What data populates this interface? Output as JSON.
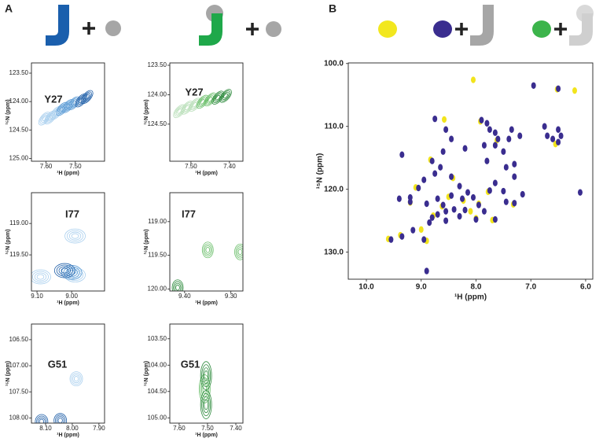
{
  "panel_labels": [
    "A",
    "B"
  ],
  "chart_data": [
    {
      "type": "contour",
      "annotation": "Y27",
      "xlabel": "¹H (ppm)",
      "ylabel": "¹⁵N (ppm)",
      "xlim": [
        7.65,
        7.4
      ],
      "ylim": [
        125.05,
        123.32
      ],
      "xticks": [
        {
          "value": 7.6,
          "label": "7.60"
        },
        {
          "value": 7.5,
          "label": "7.50"
        }
      ],
      "yticks": [
        {
          "value": 123.5,
          "label": "123.50"
        },
        {
          "value": 124,
          "label": "124.00"
        },
        {
          "value": 124.5,
          "label": "124.50"
        },
        {
          "value": 125,
          "label": "125.00"
        }
      ],
      "series": [
        {
          "color": "#a9cfee",
          "x": [
            7.605,
            7.585,
            7.565
          ],
          "values": [
            124.3,
            124.28,
            124.2
          ]
        },
        {
          "color": "#5b9bd5",
          "x": [
            7.545,
            7.525,
            7.505
          ],
          "values": [
            124.13,
            124.08,
            124.03
          ]
        },
        {
          "color": "#1f5fa8",
          "x": [
            7.48,
            7.46
          ],
          "values": [
            123.98,
            123.92
          ]
        }
      ]
    },
    {
      "type": "contour",
      "annotation": "Y27",
      "xlabel": "¹H (ppm)",
      "ylabel": "¹⁵N (ppm)",
      "xlim": [
        7.555,
        7.365
      ],
      "ylim": [
        125.13,
        123.46
      ],
      "xticks": [
        {
          "value": 7.5,
          "label": "7.50"
        },
        {
          "value": 7.4,
          "label": "7.40"
        }
      ],
      "yticks": [
        {
          "value": 123.5,
          "label": "123.50"
        },
        {
          "value": 124,
          "label": "124.00"
        },
        {
          "value": 124.5,
          "label": "124.50"
        }
      ],
      "series": [
        {
          "color": "#b9dfb9",
          "x": [
            7.53,
            7.51,
            7.49
          ],
          "values": [
            124.28,
            124.22,
            124.17
          ]
        },
        {
          "color": "#6cbf6c",
          "x": [
            7.47,
            7.45
          ],
          "values": [
            124.12,
            124.08
          ]
        },
        {
          "color": "#2e8b3e",
          "x": [
            7.43,
            7.41
          ],
          "values": [
            124.05,
            124.02
          ]
        }
      ]
    },
    {
      "type": "contour",
      "annotation": "I77",
      "xlabel": "¹H (ppm)",
      "ylabel": "¹⁵N (ppm)",
      "xlim": [
        9.116,
        8.905
      ],
      "ylim": [
        120.075,
        118.51
      ],
      "xticks": [
        {
          "value": 9.1,
          "label": "9.10"
        },
        {
          "value": 9,
          "label": "9.00"
        }
      ],
      "yticks": [
        {
          "value": 119,
          "label": "119.00"
        },
        {
          "value": 119.5,
          "label": "119.50"
        }
      ],
      "series": [
        {
          "color": "#a9cfee",
          "x": [
            8.99,
            8.99,
            9.09
          ],
          "values": [
            119.2,
            119.82,
            119.85
          ]
        },
        {
          "color": "#5b9bd5",
          "x": [
            9.0
          ],
          "values": [
            119.78
          ]
        },
        {
          "color": "#1f5fa8",
          "x": [
            9.02
          ],
          "values": [
            119.75
          ]
        }
      ]
    },
    {
      "type": "contour",
      "annotation": "I77",
      "xlabel": "¹H (ppm)",
      "ylabel": "¹⁵N (ppm)",
      "xlim": [
        9.432,
        9.274
      ],
      "ylim": [
        120.03,
        118.57
      ],
      "xticks": [
        {
          "value": 9.4,
          "label": "9.40"
        },
        {
          "value": 9.3,
          "label": "9.30"
        }
      ],
      "yticks": [
        {
          "value": 119,
          "label": "119.00"
        },
        {
          "value": 119.5,
          "label": "119.50"
        },
        {
          "value": 120,
          "label": "120.00"
        }
      ],
      "series": [
        {
          "color": "#6cbf6c",
          "x": [
            9.35,
            9.28
          ],
          "values": [
            119.42,
            119.45
          ]
        },
        {
          "color": "#2e8b3e",
          "x": [
            9.415
          ],
          "values": [
            119.98
          ]
        }
      ]
    },
    {
      "type": "contour",
      "annotation": "G51",
      "xlabel": "¹H (ppm)",
      "ylabel": "¹⁵N (ppm)",
      "xlim": [
        8.153,
        7.879
      ],
      "ylim": [
        108.1,
        106.2
      ],
      "xticks": [
        {
          "value": 8.1,
          "label": "8.10"
        },
        {
          "value": 8,
          "label": "8.00"
        },
        {
          "value": 7.9,
          "label": "7.90"
        }
      ],
      "yticks": [
        {
          "value": 106.5,
          "label": "106.50"
        },
        {
          "value": 107,
          "label": "107.00"
        },
        {
          "value": 107.5,
          "label": "107.50"
        },
        {
          "value": 108,
          "label": "108.00"
        }
      ],
      "series": [
        {
          "color": "#a9cfee",
          "x": [
            7.985
          ],
          "values": [
            107.25
          ]
        },
        {
          "color": "#1f5fa8",
          "x": [
            8.045,
            8.115
          ],
          "values": [
            108.05,
            108.07
          ]
        }
      ]
    },
    {
      "type": "contour",
      "annotation": "G51",
      "xlabel": "¹H (ppm)",
      "ylabel": "¹⁵N (ppm)",
      "xlim": [
        7.633,
        7.375
      ],
      "ylim": [
        105.1,
        103.22
      ],
      "xticks": [
        {
          "value": 7.6,
          "label": "7.60"
        },
        {
          "value": 7.5,
          "label": "7.50"
        },
        {
          "value": 7.4,
          "label": "7.40"
        }
      ],
      "yticks": [
        {
          "value": 103.5,
          "label": "103.50"
        },
        {
          "value": 104,
          "label": "104.00"
        },
        {
          "value": 104.5,
          "label": "104.50"
        },
        {
          "value": 105,
          "label": "105.00"
        }
      ],
      "series": [
        {
          "color": "#6cbf6c",
          "x": [
            7.51
          ],
          "values": [
            104.45
          ]
        },
        {
          "color": "#2e8b3e",
          "x": [
            7.505,
            7.505
          ],
          "values": [
            104.2,
            104.75
          ]
        }
      ]
    },
    {
      "type": "scatter",
      "xlabel": "¹H (ppm)",
      "ylabel": "¹⁵N (ppm)",
      "xlim": [
        10.33,
        5.87
      ],
      "ylim": [
        134.3,
        99.9
      ],
      "xticks": [
        {
          "value": 10,
          "label": "10.0"
        },
        {
          "value": 9,
          "label": "9.0"
        },
        {
          "value": 8,
          "label": "8.0"
        },
        {
          "value": 7,
          "label": "7.0"
        },
        {
          "value": 6,
          "label": "6.0"
        }
      ],
      "yticks": [
        {
          "value": 100,
          "label": "100.0"
        },
        {
          "value": 110,
          "label": "110.0"
        },
        {
          "value": 120,
          "label": "120.0"
        },
        {
          "value": 130,
          "label": "130.0"
        }
      ],
      "series": [
        {
          "color": "#f2e41c",
          "x": [
            8.05,
            6.2,
            6.52,
            8.58,
            7.92,
            7.62,
            8.83,
            9.1,
            9.6,
            9.38,
            8.0,
            7.7,
            8.5,
            8.23,
            7.95,
            8.78,
            9.2,
            8.42,
            7.32,
            6.55,
            8.9,
            8.62,
            7.78,
            9.0,
            8.1
          ],
          "values": [
            102.6,
            104.3,
            104.1,
            108.9,
            109.2,
            112.2,
            115.3,
            119.7,
            127.9,
            127.3,
            124.6,
            124.9,
            121.2,
            121.8,
            122.3,
            124.2,
            122.1,
            118.2,
            122.4,
            112.8,
            128.2,
            122.7,
            120.4,
            126.4,
            123.5
          ]
        },
        {
          "color": "#3a2d8f",
          "x": [
            6.95,
            6.5,
            8.55,
            8.75,
            7.9,
            7.8,
            7.75,
            7.65,
            7.6,
            7.65,
            7.35,
            7.4,
            7.2,
            6.75,
            6.7,
            6.6,
            6.5,
            6.45,
            6.5,
            8.45,
            8.2,
            7.85,
            7.8,
            7.5,
            7.45,
            7.3,
            7.3,
            8.6,
            8.65,
            8.75,
            8.8,
            9.35,
            8.95,
            9.05,
            8.45,
            8.3,
            8.15,
            8.25,
            8.45,
            8.7,
            8.6,
            8.55,
            8.4,
            8.3,
            8.2,
            8.05,
            7.95,
            7.85,
            7.75,
            7.65,
            7.5,
            7.45,
            7.3,
            7.65,
            8.0,
            8.55,
            8.8,
            8.85,
            9.15,
            9.2,
            9.4,
            9.2,
            9.35,
            9.55,
            8.95,
            8.9,
            6.1,
            8.9,
            8.7,
            7.15
          ],
          "values": [
            103.5,
            104.0,
            110.5,
            108.8,
            109.0,
            109.5,
            110.5,
            111.0,
            112.0,
            113.0,
            110.5,
            112.0,
            111.5,
            110.0,
            111.5,
            112.0,
            110.5,
            111.5,
            112.5,
            112.0,
            113.5,
            113.0,
            115.5,
            114.0,
            116.5,
            116.0,
            118.0,
            114.0,
            116.5,
            117.5,
            115.5,
            114.5,
            118.5,
            119.8,
            118.0,
            119.5,
            120.5,
            121.5,
            121.0,
            121.5,
            122.5,
            123.5,
            123.2,
            124.3,
            123.3,
            121.3,
            122.5,
            123.5,
            120.2,
            119.0,
            120.3,
            122.0,
            122.2,
            124.8,
            124.8,
            125.0,
            124.5,
            125.3,
            126.5,
            122.0,
            121.5,
            121.3,
            127.5,
            128.0,
            128.0,
            133.0,
            120.5,
            122.3,
            124.0,
            120.8
          ]
        }
      ]
    }
  ]
}
